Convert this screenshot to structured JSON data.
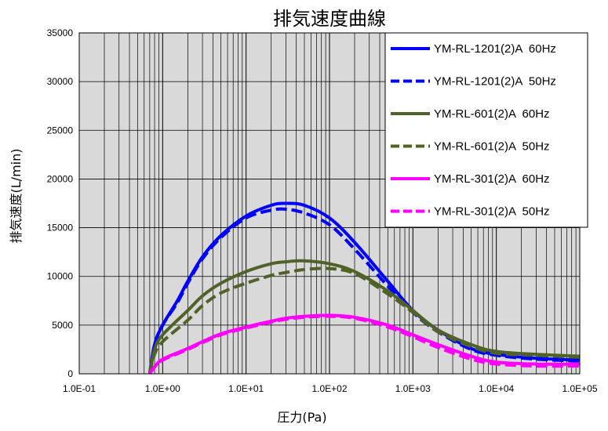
{
  "chart_data": {
    "type": "line",
    "title": "排気速度曲線",
    "xlabel": "圧力(Pa)",
    "ylabel": "排気速度(L/min)",
    "x_scale": "log",
    "xlim": [
      0.1,
      100000
    ],
    "ylim": [
      0,
      35000
    ],
    "x_ticks": [
      0.1,
      1,
      10,
      100,
      1000,
      10000,
      100000
    ],
    "x_tick_labels": [
      "1.0E-01",
      "1.0E+00",
      "1.0E+01",
      "1.0E+02",
      "1.0E+03",
      "1.0E+04",
      "1.0E+05"
    ],
    "y_ticks": [
      0,
      5000,
      10000,
      15000,
      20000,
      25000,
      30000,
      35000
    ],
    "y_tick_labels": [
      "0",
      "5000",
      "10000",
      "15000",
      "20000",
      "25000",
      "30000",
      "35000"
    ],
    "grid": true,
    "plot_background": "#d9d9d9",
    "legend_position": "top-right",
    "series": [
      {
        "name": "YM-RL-1201(2)A  60Hz",
        "color": "#0000ff",
        "dash": "solid",
        "x": [
          0.7,
          0.8,
          1,
          1.5,
          2,
          3,
          5,
          10,
          20,
          30,
          50,
          100,
          200,
          500,
          1000,
          2000,
          5000,
          10000,
          30000,
          100000
        ],
        "y": [
          0,
          3000,
          5000,
          7500,
          9500,
          12000,
          14200,
          16200,
          17300,
          17500,
          17300,
          16000,
          13500,
          9500,
          6500,
          4500,
          2600,
          2000,
          1600,
          1400
        ]
      },
      {
        "name": "YM-RL-1201(2)A  50Hz",
        "color": "#0000ff",
        "dash": "dashed",
        "x": [
          0.7,
          0.8,
          1,
          1.5,
          2,
          3,
          5,
          10,
          20,
          30,
          50,
          100,
          200,
          500,
          1000,
          2000,
          5000,
          10000,
          30000,
          100000
        ],
        "y": [
          0,
          3000,
          5000,
          7300,
          9300,
          11800,
          14000,
          16000,
          16800,
          16900,
          16500,
          15300,
          12800,
          9000,
          6300,
          4300,
          2500,
          1900,
          1500,
          1300
        ]
      },
      {
        "name": "YM-RL-601(2)A  60Hz",
        "color": "#4f6228",
        "dash": "solid",
        "x": [
          0.7,
          0.8,
          1,
          2,
          3,
          5,
          10,
          20,
          30,
          50,
          100,
          200,
          500,
          1000,
          2000,
          5000,
          10000,
          30000,
          100000
        ],
        "y": [
          0,
          2500,
          4000,
          6500,
          8000,
          9300,
          10500,
          11300,
          11500,
          11600,
          11300,
          10500,
          8500,
          6500,
          4500,
          3000,
          2300,
          2000,
          1800
        ]
      },
      {
        "name": "YM-RL-601(2)A  50Hz",
        "color": "#4f6228",
        "dash": "dashed",
        "x": [
          0.7,
          0.8,
          1,
          2,
          3,
          5,
          10,
          20,
          30,
          50,
          100,
          200,
          500,
          1000,
          2000,
          5000,
          10000,
          30000,
          100000
        ],
        "y": [
          0,
          2000,
          3300,
          5500,
          7000,
          8300,
          9300,
          10100,
          10400,
          10700,
          10800,
          10300,
          8200,
          6300,
          4300,
          2800,
          2100,
          1900,
          1700
        ]
      },
      {
        "name": "YM-RL-301(2)A  60Hz",
        "color": "#ff00ff",
        "dash": "solid",
        "x": [
          0.7,
          0.8,
          1,
          2,
          3,
          5,
          10,
          20,
          30,
          50,
          100,
          200,
          500,
          1000,
          2000,
          5000,
          10000,
          30000,
          100000
        ],
        "y": [
          0,
          700,
          1500,
          2600,
          3300,
          4100,
          4800,
          5400,
          5700,
          5900,
          6000,
          5800,
          5000,
          4000,
          3000,
          1800,
          1200,
          1000,
          1000
        ]
      },
      {
        "name": "YM-RL-301(2)A  50Hz",
        "color": "#ff00ff",
        "dash": "dashed",
        "x": [
          0.7,
          0.8,
          1,
          2,
          3,
          5,
          10,
          20,
          30,
          50,
          100,
          200,
          500,
          1000,
          2000,
          5000,
          10000,
          30000,
          100000
        ],
        "y": [
          0,
          700,
          1400,
          2500,
          3200,
          4000,
          4700,
          5300,
          5600,
          5800,
          5900,
          5700,
          4800,
          3800,
          2700,
          1500,
          1000,
          800,
          800
        ]
      }
    ]
  }
}
